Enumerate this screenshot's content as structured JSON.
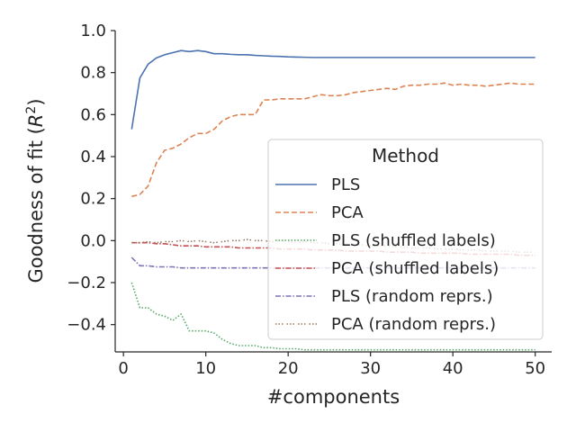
{
  "chart_data": {
    "type": "line",
    "xlabel": "#components",
    "ylabel": "Goodness of fit",
    "ylabel_symbol": "R",
    "ylabel_exp": "2",
    "xlim": [
      -1,
      52
    ],
    "ylim": [
      -0.53,
      1.0
    ],
    "xticks": [
      0,
      10,
      20,
      30,
      40,
      50
    ],
    "yticks": [
      -0.4,
      -0.2,
      0.0,
      0.2,
      0.4,
      0.6,
      0.8,
      1.0
    ],
    "ytick_labels": [
      "−0.4",
      "−0.2",
      "0.0",
      "0.2",
      "0.4",
      "0.6",
      "0.8",
      "1.0"
    ],
    "legend": {
      "title": "Method",
      "location": "center-right"
    },
    "x": [
      1,
      2,
      3,
      4,
      5,
      6,
      7,
      8,
      9,
      10,
      11,
      12,
      13,
      14,
      15,
      16,
      17,
      18,
      19,
      20,
      21,
      22,
      23,
      24,
      25,
      26,
      27,
      28,
      29,
      30,
      31,
      32,
      33,
      34,
      35,
      36,
      37,
      38,
      39,
      40,
      41,
      42,
      43,
      44,
      45,
      46,
      47,
      48,
      49,
      50
    ],
    "series": [
      {
        "name": "PLS",
        "color": "#4c72b0",
        "dash": "",
        "values": [
          0.53,
          0.775,
          0.84,
          0.87,
          0.885,
          0.895,
          0.905,
          0.9,
          0.905,
          0.9,
          0.89,
          0.89,
          0.887,
          0.885,
          0.885,
          0.882,
          0.88,
          0.878,
          0.877,
          0.875,
          0.874,
          0.873,
          0.872,
          0.872,
          0.872,
          0.872,
          0.872,
          0.872,
          0.872,
          0.872,
          0.872,
          0.872,
          0.872,
          0.872,
          0.872,
          0.872,
          0.872,
          0.872,
          0.872,
          0.872,
          0.872,
          0.872,
          0.872,
          0.872,
          0.872,
          0.872,
          0.872,
          0.872,
          0.872,
          0.872
        ]
      },
      {
        "name": "PCA",
        "color": "#dd8452",
        "dash": "6,3",
        "values": [
          0.21,
          0.22,
          0.26,
          0.37,
          0.43,
          0.44,
          0.46,
          0.49,
          0.51,
          0.51,
          0.53,
          0.57,
          0.59,
          0.6,
          0.6,
          0.6,
          0.67,
          0.67,
          0.675,
          0.675,
          0.675,
          0.675,
          0.685,
          0.695,
          0.69,
          0.69,
          0.695,
          0.705,
          0.71,
          0.715,
          0.72,
          0.725,
          0.72,
          0.735,
          0.74,
          0.74,
          0.745,
          0.745,
          0.75,
          0.74,
          0.745,
          0.74,
          0.74,
          0.735,
          0.74,
          0.745,
          0.75,
          0.745,
          0.745,
          0.745
        ]
      },
      {
        "name": "PLS (shuffled labels)",
        "color": "#55a868",
        "dash": "1.5,2",
        "values": [
          -0.2,
          -0.32,
          -0.32,
          -0.35,
          -0.36,
          -0.38,
          -0.35,
          -0.43,
          -0.43,
          -0.43,
          -0.44,
          -0.47,
          -0.49,
          -0.5,
          -0.5,
          -0.5,
          -0.51,
          -0.51,
          -0.515,
          -0.515,
          -0.515,
          -0.52,
          -0.52,
          -0.52,
          -0.52,
          -0.52,
          -0.52,
          -0.52,
          -0.52,
          -0.52,
          -0.52,
          -0.52,
          -0.52,
          -0.52,
          -0.52,
          -0.52,
          -0.52,
          -0.52,
          -0.52,
          -0.52,
          -0.52,
          -0.52,
          -0.52,
          -0.52,
          -0.52,
          -0.52,
          -0.52,
          -0.52,
          -0.52,
          -0.52
        ]
      },
      {
        "name": "PCA (shuffled labels)",
        "color": "#c44e52",
        "dash": "6,2,1.5,2",
        "values": [
          -0.01,
          -0.01,
          -0.01,
          -0.015,
          -0.015,
          -0.02,
          -0.025,
          -0.025,
          -0.025,
          -0.03,
          -0.03,
          -0.03,
          -0.03,
          -0.035,
          -0.035,
          -0.035,
          -0.035,
          -0.035,
          -0.04,
          -0.04,
          -0.04,
          -0.04,
          -0.045,
          -0.045,
          -0.045,
          -0.045,
          -0.05,
          -0.05,
          -0.05,
          -0.05,
          -0.05,
          -0.055,
          -0.055,
          -0.055,
          -0.055,
          -0.06,
          -0.06,
          -0.06,
          -0.06,
          -0.06,
          -0.06,
          -0.065,
          -0.065,
          -0.065,
          -0.065,
          -0.065,
          -0.065,
          -0.07,
          -0.07,
          -0.07
        ]
      },
      {
        "name": "PLS (random reprs.)",
        "color": "#8172b3",
        "dash": "6,2,1.5,2",
        "values": [
          -0.08,
          -0.12,
          -0.12,
          -0.125,
          -0.125,
          -0.125,
          -0.13,
          -0.13,
          -0.13,
          -0.13,
          -0.13,
          -0.13,
          -0.13,
          -0.13,
          -0.13,
          -0.13,
          -0.13,
          -0.13,
          -0.13,
          -0.13,
          -0.13,
          -0.13,
          -0.13,
          -0.13,
          -0.13,
          -0.13,
          -0.13,
          -0.13,
          -0.13,
          -0.13,
          -0.13,
          -0.13,
          -0.13,
          -0.13,
          -0.13,
          -0.13,
          -0.13,
          -0.13,
          -0.13,
          -0.13,
          -0.13,
          -0.13,
          -0.13,
          -0.13,
          -0.13,
          -0.13,
          -0.13,
          -0.13,
          -0.13,
          -0.13
        ]
      },
      {
        "name": "PCA (random reprs.)",
        "color": "#937860",
        "dash": "1.5,2,1.5,2,1.5,4",
        "values": [
          -0.01,
          -0.01,
          -0.005,
          -0.01,
          -0.005,
          -0.005,
          0.0,
          -0.005,
          0.0,
          -0.005,
          -0.01,
          -0.005,
          0.0,
          0.0,
          0.005,
          0.0,
          0.0,
          -0.005,
          0.0,
          -0.005,
          -0.01,
          -0.005,
          -0.01,
          -0.01,
          -0.015,
          -0.015,
          -0.02,
          -0.02,
          -0.02,
          -0.025,
          -0.025,
          -0.025,
          -0.03,
          -0.03,
          -0.035,
          -0.035,
          -0.035,
          -0.04,
          -0.04,
          -0.04,
          -0.045,
          -0.045,
          -0.045,
          -0.05,
          -0.05,
          -0.05,
          -0.05,
          -0.055,
          -0.055,
          -0.055
        ]
      }
    ]
  }
}
